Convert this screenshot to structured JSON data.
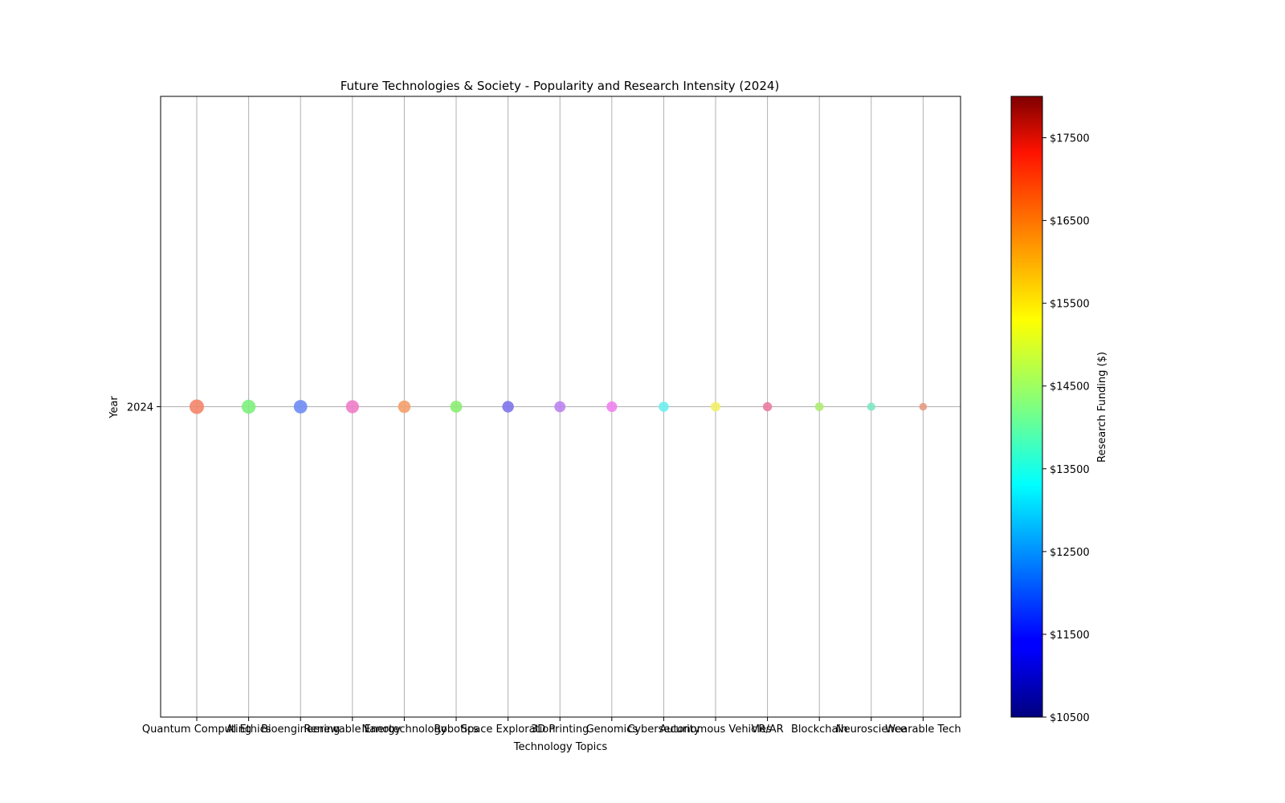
{
  "chart_data": {
    "type": "scatter",
    "title": "Future Technologies & Society - Popularity and Research Intensity (2024)",
    "xlabel": "Technology Topics",
    "ylabel": "Year",
    "categories": [
      "Quantum Computing",
      "AI Ethics",
      "Bioengineering",
      "Renewable Energy",
      "Nanotechnology",
      "Robotics",
      "Space Exploration",
      "3D Printing",
      "Genomics",
      "Cybersecurity",
      "Autonomous Vehicles",
      "VR/AR",
      "Blockchain",
      "Neuroscience",
      "Wearable Tech"
    ],
    "y_ticks": [
      "2024"
    ],
    "points": [
      {
        "category": "Quantum Computing",
        "year": 2024,
        "color": "#f4846a",
        "relative_size": 15
      },
      {
        "category": "AI Ethics",
        "year": 2024,
        "color": "#7ef07e",
        "relative_size": 14
      },
      {
        "category": "Bioengineering",
        "year": 2024,
        "color": "#6f8cf4",
        "relative_size": 13
      },
      {
        "category": "Renewable Energy",
        "year": 2024,
        "color": "#f07cc8",
        "relative_size": 12
      },
      {
        "category": "Nanotechnology",
        "year": 2024,
        "color": "#f4a06c",
        "relative_size": 11
      },
      {
        "category": "Robotics",
        "year": 2024,
        "color": "#8ced74",
        "relative_size": 10
      },
      {
        "category": "Space Exploration",
        "year": 2024,
        "color": "#7e74ec",
        "relative_size": 9
      },
      {
        "category": "3D Printing",
        "year": 2024,
        "color": "#bb84f0",
        "relative_size": 8
      },
      {
        "category": "Genomics",
        "year": 2024,
        "color": "#ef82ee",
        "relative_size": 7
      },
      {
        "category": "Cybersecurity",
        "year": 2024,
        "color": "#6eeeee",
        "relative_size": 6
      },
      {
        "category": "Autonomous Vehicles",
        "year": 2024,
        "color": "#f2f06c",
        "relative_size": 5
      },
      {
        "category": "VR/AR",
        "year": 2024,
        "color": "#ea7ca2",
        "relative_size": 4
      },
      {
        "category": "Blockchain",
        "year": 2024,
        "color": "#b0ec74",
        "relative_size": 3
      },
      {
        "category": "Neuroscience",
        "year": 2024,
        "color": "#7ee8c2",
        "relative_size": 2
      },
      {
        "category": "Wearable Tech",
        "year": 2024,
        "color": "#e89a84",
        "relative_size": 1
      }
    ],
    "grid": true,
    "colorbar": {
      "label": "Research Funding ($)",
      "colormap": "jet",
      "range": [
        10500,
        18000
      ],
      "ticks": [
        "$10500",
        "$11500",
        "$12500",
        "$13500",
        "$14500",
        "$15500",
        "$16500",
        "$17500"
      ],
      "tick_values": [
        10500,
        11500,
        12500,
        13500,
        14500,
        15500,
        16500,
        17500
      ]
    }
  }
}
